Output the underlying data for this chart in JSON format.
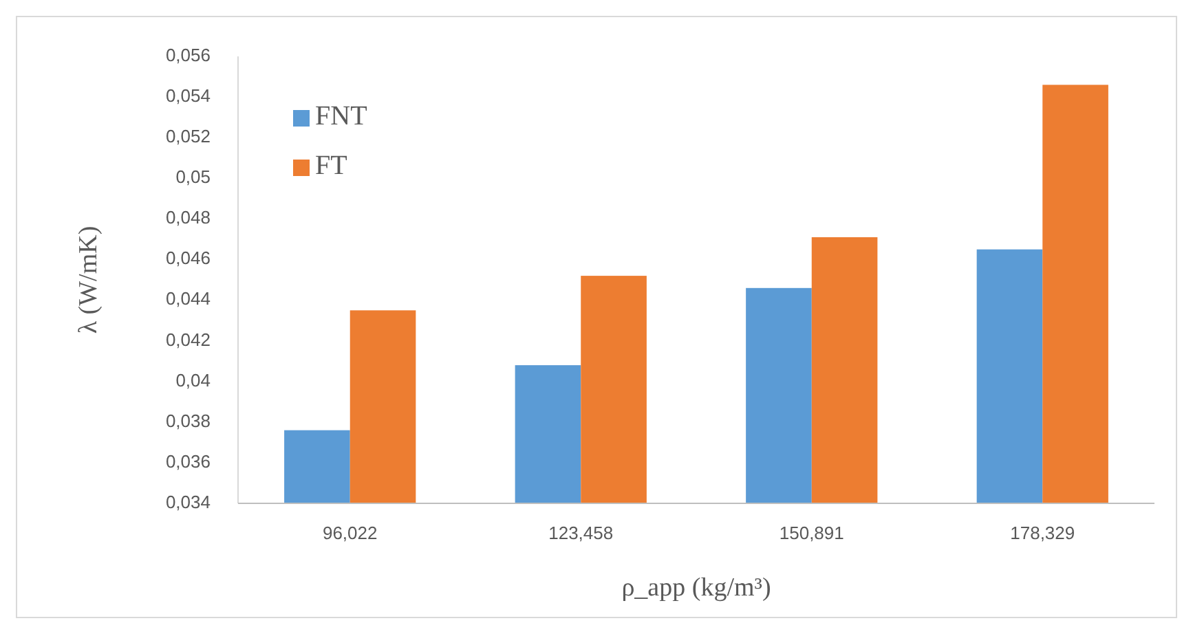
{
  "chart_data": {
    "type": "bar",
    "xlabel": "ρ_app (kg/m³)",
    "ylabel": "λ (W/mK)",
    "categories": [
      "96,022",
      "123,458",
      "150,891",
      "178,329"
    ],
    "series": [
      {
        "name": "FNT",
        "color": "#5b9bd5",
        "values": [
          0.0376,
          0.0408,
          0.0446,
          0.0465
        ]
      },
      {
        "name": "FT",
        "color": "#ed7d31",
        "values": [
          0.0435,
          0.0452,
          0.0471,
          0.0546
        ]
      }
    ],
    "ylim": [
      0.034,
      0.056
    ],
    "yticks": [
      {
        "value": 0.034,
        "label": "0,034"
      },
      {
        "value": 0.036,
        "label": "0,036"
      },
      {
        "value": 0.038,
        "label": "0,038"
      },
      {
        "value": 0.04,
        "label": "0,04"
      },
      {
        "value": 0.042,
        "label": "0,042"
      },
      {
        "value": 0.044,
        "label": "0,044"
      },
      {
        "value": 0.046,
        "label": "0,046"
      },
      {
        "value": 0.048,
        "label": "0,048"
      },
      {
        "value": 0.05,
        "label": "0,05"
      },
      {
        "value": 0.052,
        "label": "0,052"
      },
      {
        "value": 0.054,
        "label": "0,054"
      },
      {
        "value": 0.056,
        "label": "0,056"
      }
    ],
    "grid": false,
    "legend": "top left"
  }
}
